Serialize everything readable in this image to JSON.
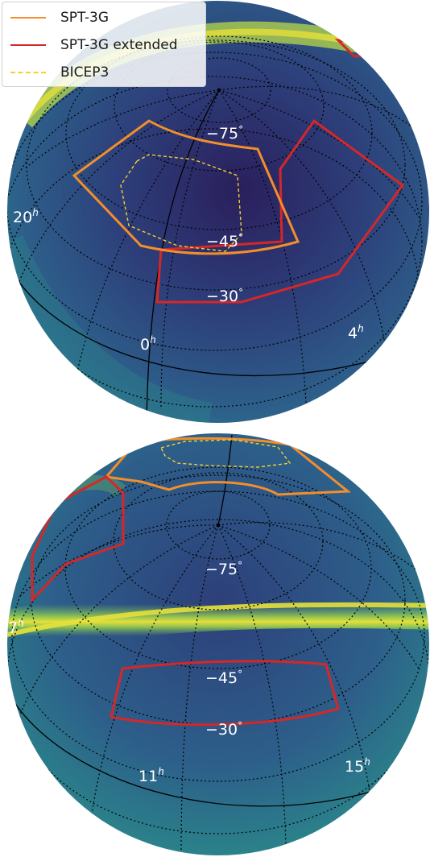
{
  "legend": {
    "items": [
      {
        "label": "SPT-3G",
        "color": "#f28e2b",
        "style": "solid"
      },
      {
        "label": "SPT-3G extended",
        "color": "#d62728",
        "style": "solid"
      },
      {
        "label": "BICEP3",
        "color": "#f2d22a",
        "style": "dashed"
      }
    ]
  },
  "top_globe": {
    "dec_labels": [
      {
        "text": "−75",
        "deg": "°"
      },
      {
        "text": "−45",
        "deg": "°"
      },
      {
        "text": "−30",
        "deg": "°"
      }
    ],
    "ra_labels": [
      {
        "text": "20",
        "sup": "h"
      },
      {
        "text": "0",
        "sup": "h"
      },
      {
        "text": "4",
        "sup": "h"
      }
    ]
  },
  "bottom_globe": {
    "dec_labels": [
      {
        "text": "−75",
        "deg": "°"
      },
      {
        "text": "−45",
        "deg": "°"
      },
      {
        "text": "−30",
        "deg": "°"
      }
    ],
    "ra_labels": [
      {
        "text": "7",
        "sup": "h"
      },
      {
        "text": "11",
        "sup": "h"
      },
      {
        "text": "15",
        "sup": "h"
      }
    ]
  },
  "colors": {
    "map_dark": "#2a1f5c",
    "map_mid": "#2d5f8a",
    "map_teal": "#2a8a8a",
    "map_green": "#6cbf5a",
    "map_yellow": "#e6e03a",
    "spt3g": "#f28e2b",
    "spt3g_extended": "#d62728",
    "bicep3": "#f2d22a"
  }
}
